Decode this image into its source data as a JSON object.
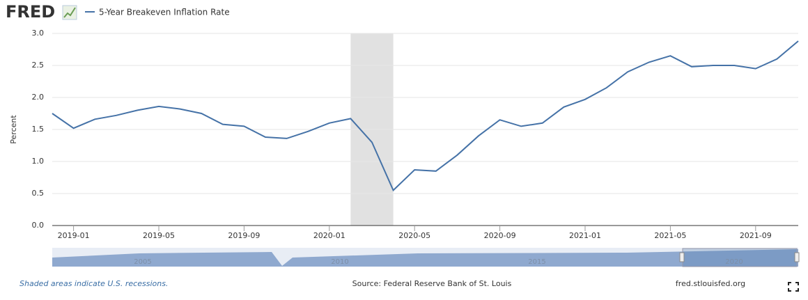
{
  "logo": "FRED",
  "chart_data": {
    "type": "line",
    "y_label": "Percent",
    "x": [
      "2018-12",
      "2019-01",
      "2019-02",
      "2019-03",
      "2019-04",
      "2019-05",
      "2019-06",
      "2019-07",
      "2019-08",
      "2019-09",
      "2019-10",
      "2019-11",
      "2019-12",
      "2020-01",
      "2020-02",
      "2020-03",
      "2020-04",
      "2020-05",
      "2020-06",
      "2020-07",
      "2020-08",
      "2020-09",
      "2020-10",
      "2020-11",
      "2020-12",
      "2021-01",
      "2021-02",
      "2021-03",
      "2021-04",
      "2021-05",
      "2021-06",
      "2021-07",
      "2021-08",
      "2021-09",
      "2021-10",
      "2021-11"
    ],
    "series": [
      {
        "name": "5-Year Breakeven Inflation Rate",
        "color": "#4572a7",
        "values": [
          1.75,
          1.52,
          1.66,
          1.72,
          1.8,
          1.86,
          1.82,
          1.75,
          1.58,
          1.55,
          1.38,
          1.36,
          1.47,
          1.6,
          1.67,
          1.3,
          0.55,
          0.87,
          0.85,
          1.1,
          1.4,
          1.65,
          1.55,
          1.6,
          1.85,
          1.97,
          2.15,
          2.4,
          2.55,
          2.65,
          2.48,
          2.5,
          2.5,
          2.45,
          2.6,
          2.88
        ]
      }
    ],
    "xlim": [
      "2018-12",
      "2021-11"
    ],
    "xticks": [
      "2019-01",
      "2019-05",
      "2019-09",
      "2020-01",
      "2020-05",
      "2020-09",
      "2021-01",
      "2021-05",
      "2021-09"
    ],
    "ylim": [
      0,
      3
    ],
    "yticks": [
      {
        "value": 0,
        "label": "0.0"
      },
      0.5,
      {
        "value": 1,
        "label": "1.0"
      },
      1.5,
      {
        "value": 2,
        "label": "2.0"
      },
      2.5,
      {
        "value": 3,
        "label": "3.0"
      }
    ],
    "grid": true,
    "recessions": [
      {
        "start": "2020-02",
        "end": "2020-04"
      }
    ],
    "navigator_labels": [
      "2005",
      "2010",
      "2015",
      "2020"
    ],
    "note": "Shaded areas indicate U.S. recessions.",
    "source": "Source: Federal Reserve Bank of St. Louis",
    "url": "fred.stlouisfed.org"
  }
}
